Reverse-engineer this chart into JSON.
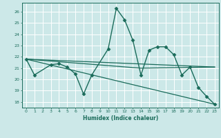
{
  "title": "",
  "xlabel": "Humidex (Indice chaleur)",
  "ylabel": "",
  "xlim": [
    -0.5,
    23.5
  ],
  "ylim": [
    17.5,
    26.8
  ],
  "yticks": [
    18,
    19,
    20,
    21,
    22,
    23,
    24,
    25,
    26
  ],
  "xticks": [
    0,
    1,
    2,
    3,
    4,
    5,
    6,
    7,
    8,
    9,
    10,
    11,
    12,
    13,
    14,
    15,
    16,
    17,
    18,
    19,
    20,
    21,
    22,
    23
  ],
  "background_color": "#cce8e8",
  "grid_color": "#ffffff",
  "line_color": "#1a6b5a",
  "series": [
    {
      "x": [
        0,
        1,
        3,
        4,
        5,
        6,
        7,
        8,
        10,
        11,
        12,
        13,
        14,
        15,
        16,
        17,
        18,
        19,
        20,
        21,
        22,
        23
      ],
      "y": [
        21.8,
        20.4,
        21.3,
        21.4,
        21.1,
        20.5,
        18.7,
        20.4,
        22.7,
        26.3,
        25.3,
        23.5,
        20.4,
        22.6,
        22.9,
        22.9,
        22.2,
        20.4,
        21.1,
        19.3,
        18.5,
        17.8
      ],
      "marker": "D",
      "markersize": 2.5,
      "linewidth": 1.0
    },
    {
      "x": [
        0,
        23
      ],
      "y": [
        21.8,
        21.1
      ],
      "marker": null,
      "markersize": 0,
      "linewidth": 0.9
    },
    {
      "x": [
        0,
        23
      ],
      "y": [
        21.8,
        17.8
      ],
      "marker": null,
      "markersize": 0,
      "linewidth": 0.9
    },
    {
      "x": [
        0,
        14,
        23
      ],
      "y": [
        21.8,
        21.0,
        21.1
      ],
      "marker": null,
      "markersize": 0,
      "linewidth": 0.9
    }
  ]
}
